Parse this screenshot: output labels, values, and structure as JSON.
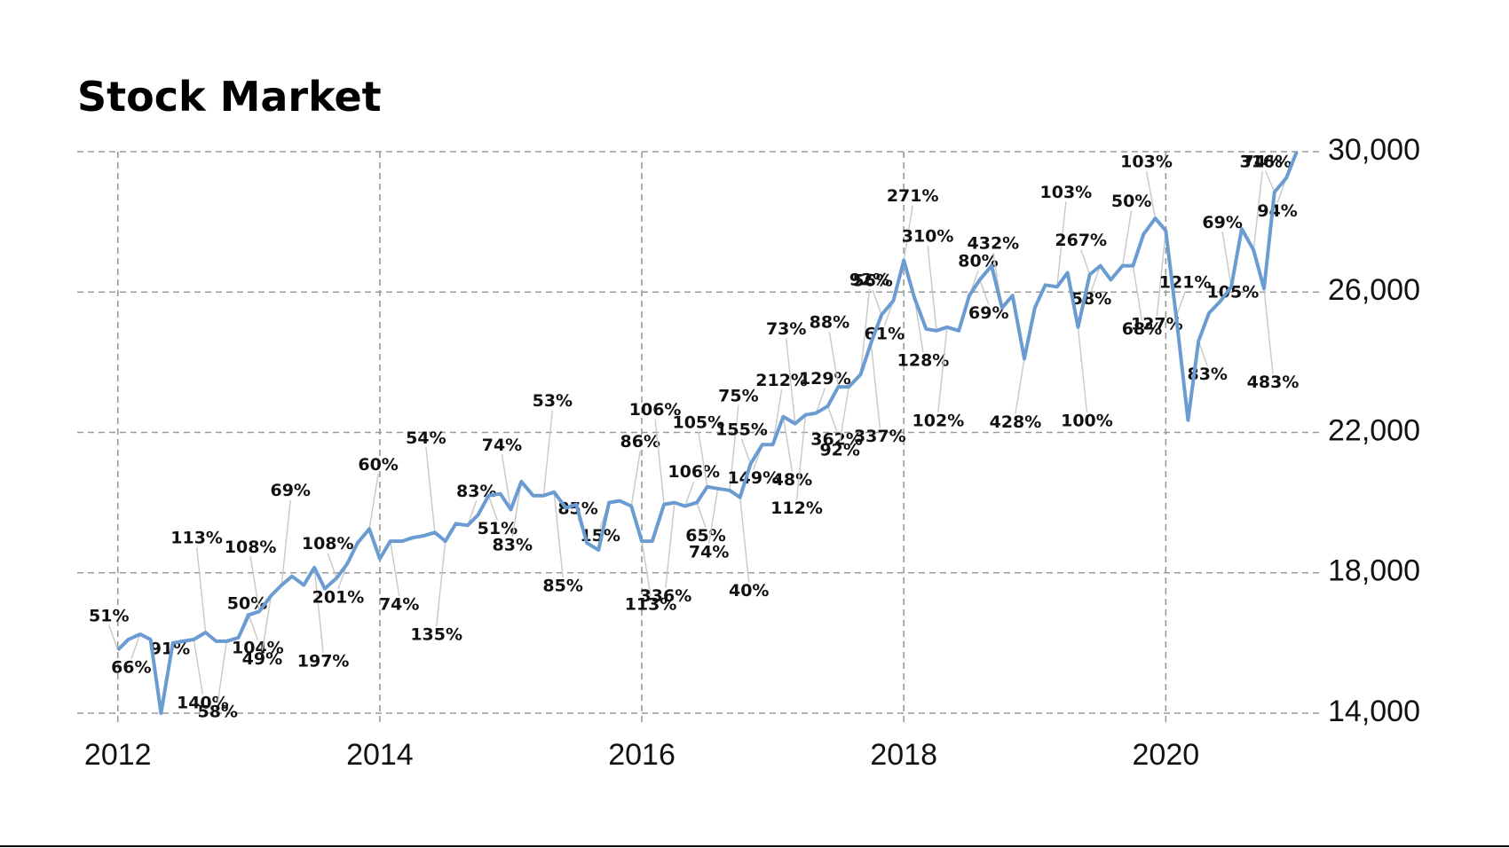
{
  "chart_data": {
    "type": "line",
    "title": "Stock Market",
    "x": [
      2012,
      2012.08,
      2012.17,
      2012.25,
      2012.33,
      2012.42,
      2012.5,
      2012.58,
      2012.67,
      2012.75,
      2012.83,
      2012.92,
      2013,
      2013.08,
      2013.17,
      2013.25,
      2013.33,
      2013.42,
      2013.5,
      2013.58,
      2013.67,
      2013.75,
      2013.83,
      2013.92,
      2014,
      2014.08,
      2014.17,
      2014.25,
      2014.33,
      2014.42,
      2014.5,
      2014.58,
      2014.67,
      2014.75,
      2014.83,
      2014.92,
      2015,
      2015.08,
      2015.17,
      2015.25,
      2015.33,
      2015.42,
      2015.5,
      2015.58,
      2015.67,
      2015.75,
      2015.83,
      2015.92,
      2016,
      2016.08,
      2016.17,
      2016.25,
      2016.33,
      2016.42,
      2016.5,
      2016.58,
      2016.67,
      2016.75,
      2016.83,
      2016.92,
      2017,
      2017.08,
      2017.17,
      2017.25,
      2017.33,
      2017.42,
      2017.5,
      2017.58,
      2017.67,
      2017.75,
      2017.83,
      2017.92,
      2018,
      2018.08,
      2018.17,
      2018.25,
      2018.33,
      2018.42,
      2018.5,
      2018.58,
      2018.67,
      2018.75,
      2018.83,
      2018.92,
      2019,
      2019.08,
      2019.17,
      2019.25,
      2019.33,
      2019.42,
      2019.5,
      2019.58,
      2019.67,
      2019.75,
      2019.83,
      2019.92,
      2020,
      2020.08,
      2020.17,
      2020.25,
      2020.33,
      2020.42,
      2020.5,
      2020.58,
      2020.67,
      2020.75,
      2020.83,
      2020.92,
      2021
    ],
    "series": [
      {
        "color": "#6a9bd1",
        "values": [
          15800,
          16100,
          16250,
          16100,
          14000,
          16000,
          16050,
          16100,
          16300,
          16050,
          16050,
          16150,
          16800,
          16900,
          17350,
          17650,
          17900,
          17650,
          18150,
          17550,
          17850,
          18250,
          18850,
          19250,
          18400,
          18900,
          18900,
          19000,
          19050,
          19150,
          18900,
          19400,
          19350,
          19650,
          20200,
          20250,
          19800,
          20600,
          20200,
          20200,
          20300,
          19850,
          19950,
          18850,
          18650,
          20000,
          20050,
          19900,
          18900,
          18900,
          19950,
          20000,
          19900,
          20000,
          20450,
          20400,
          20350,
          20150,
          21100,
          21650,
          21650,
          22450,
          22250,
          22500,
          22550,
          22750,
          23300,
          23300,
          23650,
          24550,
          25350,
          25750,
          26900,
          25850,
          24950,
          24900,
          25000,
          24900,
          25900,
          26350,
          26750,
          25550,
          25900,
          24100,
          25550,
          26200,
          26150,
          26550,
          25000,
          26500,
          26750,
          26350,
          26750,
          26750,
          27650,
          28100,
          27750,
          25300,
          22350,
          24600,
          25400,
          25750,
          26150,
          27800,
          27200,
          26100,
          28850,
          29250,
          30000
        ]
      }
    ],
    "point_labels": [
      "51%",
      null,
      "66%",
      null,
      "91%",
      null,
      null,
      "140%",
      "113%",
      null,
      "58%",
      "50%",
      "104%",
      "108%",
      "49%",
      "69%",
      null,
      null,
      "197%",
      null,
      "108%",
      "201%",
      null,
      "60%",
      null,
      "74%",
      null,
      null,
      null,
      "54%",
      "135%",
      null,
      "83%",
      null,
      "51%",
      null,
      "74%",
      "83%",
      null,
      "53%",
      "85%",
      null,
      null,
      "85%",
      null,
      "15%",
      null,
      "86%",
      "113%",
      null,
      "106%",
      "336%",
      "106%",
      "65%",
      "105%",
      "74%",
      "75%",
      "40%",
      "155%",
      "149%",
      "212%",
      "48%",
      "73%",
      "112%",
      "129%",
      "362%",
      "88%",
      "92%",
      "92%",
      "337%",
      "56%",
      "61%",
      "271%",
      "128%",
      null,
      "310%",
      "102%",
      null,
      "80%",
      "69%",
      null,
      "432%",
      null,
      "428%",
      null,
      null,
      "103%",
      null,
      "100%",
      "267%",
      "58%",
      null,
      "50%",
      "68%",
      null,
      "103%",
      "127%",
      "121%",
      null,
      "83%",
      null,
      null,
      "69%",
      "105%",
      "74%",
      "483%",
      "316%",
      "94%",
      null
    ],
    "xlim": [
      2011.69,
      2021.17
    ],
    "xticks": [
      2012,
      2014,
      2016,
      2018,
      2020
    ],
    "ylim": [
      14000,
      30000
    ],
    "yticks": [
      {
        "value": 14000,
        "label": "14,000"
      },
      {
        "value": 18000,
        "label": "18,000"
      },
      {
        "value": 22000,
        "label": "22,000"
      },
      {
        "value": 26000,
        "label": "26,000"
      },
      {
        "value": 30000,
        "label": "30,000"
      }
    ],
    "grid": true
  }
}
